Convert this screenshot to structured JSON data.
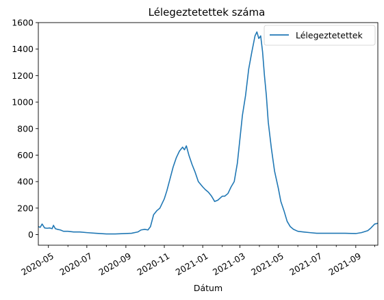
{
  "chart_data": {
    "type": "line",
    "title": "Lélegeztetettek száma",
    "xlabel": "Dátum",
    "ylabel": "",
    "ylim": [
      -80,
      1600
    ],
    "xlim": [
      "2020-04-15",
      "2021-10-06"
    ],
    "grid": false,
    "legend_position": "top-right",
    "y_ticks": [
      0,
      200,
      400,
      600,
      800,
      1000,
      1200,
      1400,
      1600
    ],
    "x_ticks": [
      "2020-05",
      "2020-07",
      "2020-09",
      "2020-11",
      "2021-01",
      "2021-03",
      "2021-05",
      "2021-07",
      "2021-09"
    ],
    "series": [
      {
        "name": "Lélegeztetettek",
        "color": "#1f77b4",
        "x": [
          "2020-04-15",
          "2020-04-18",
          "2020-04-21",
          "2020-04-25",
          "2020-04-29",
          "2020-05-03",
          "2020-05-07",
          "2020-05-09",
          "2020-05-12",
          "2020-05-15",
          "2020-05-20",
          "2020-05-25",
          "2020-06-01",
          "2020-06-10",
          "2020-06-20",
          "2020-07-01",
          "2020-07-15",
          "2020-08-01",
          "2020-08-15",
          "2020-09-01",
          "2020-09-10",
          "2020-09-20",
          "2020-09-25",
          "2020-10-01",
          "2020-10-06",
          "2020-10-10",
          "2020-10-15",
          "2020-10-20",
          "2020-10-25",
          "2020-11-01",
          "2020-11-05",
          "2020-11-10",
          "2020-11-15",
          "2020-11-20",
          "2020-11-25",
          "2020-11-30",
          "2020-12-03",
          "2020-12-06",
          "2020-12-10",
          "2020-12-15",
          "2020-12-20",
          "2020-12-25",
          "2021-01-01",
          "2021-01-05",
          "2021-01-10",
          "2021-01-15",
          "2021-01-20",
          "2021-01-25",
          "2021-02-01",
          "2021-02-05",
          "2021-02-10",
          "2021-02-15",
          "2021-02-20",
          "2021-02-25",
          "2021-03-01",
          "2021-03-05",
          "2021-03-10",
          "2021-03-15",
          "2021-03-20",
          "2021-03-25",
          "2021-03-28",
          "2021-03-31",
          "2021-04-03",
          "2021-04-06",
          "2021-04-09",
          "2021-04-12",
          "2021-04-15",
          "2021-04-20",
          "2021-04-25",
          "2021-05-01",
          "2021-05-05",
          "2021-05-10",
          "2021-05-15",
          "2021-05-20",
          "2021-05-25",
          "2021-06-01",
          "2021-06-10",
          "2021-06-20",
          "2021-07-01",
          "2021-07-15",
          "2021-08-01",
          "2021-08-15",
          "2021-09-01",
          "2021-09-10",
          "2021-09-20",
          "2021-09-25",
          "2021-10-01",
          "2021-10-06"
        ],
        "y": [
          60,
          55,
          80,
          50,
          48,
          50,
          45,
          70,
          45,
          40,
          35,
          25,
          25,
          20,
          20,
          15,
          10,
          5,
          5,
          8,
          10,
          20,
          35,
          40,
          35,
          60,
          150,
          180,
          200,
          270,
          330,
          420,
          510,
          580,
          630,
          660,
          640,
          670,
          600,
          530,
          470,
          400,
          360,
          340,
          320,
          290,
          250,
          260,
          290,
          290,
          310,
          360,
          400,
          540,
          720,
          900,
          1050,
          1250,
          1380,
          1500,
          1530,
          1480,
          1500,
          1380,
          1200,
          1050,
          850,
          650,
          480,
          350,
          250,
          180,
          100,
          60,
          40,
          25,
          20,
          15,
          10,
          10,
          10,
          10,
          8,
          15,
          30,
          50,
          80,
          85
        ]
      }
    ]
  }
}
